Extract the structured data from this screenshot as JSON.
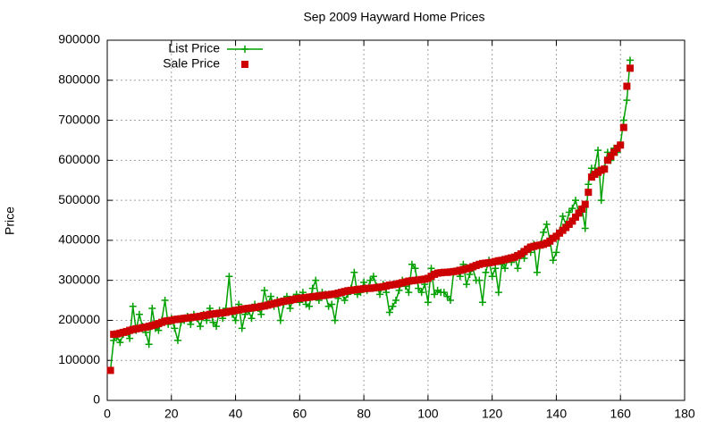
{
  "chart_data": {
    "type": "linespoints",
    "title": "Sep 2009 Hayward Home Prices",
    "y_label": "Price",
    "x": [
      1,
      2,
      3,
      4,
      5,
      6,
      7,
      8,
      9,
      10,
      11,
      12,
      13,
      14,
      15,
      16,
      17,
      18,
      19,
      20,
      21,
      22,
      23,
      24,
      25,
      26,
      27,
      28,
      29,
      30,
      31,
      32,
      33,
      34,
      35,
      36,
      37,
      38,
      39,
      40,
      41,
      42,
      43,
      44,
      45,
      46,
      47,
      48,
      49,
      50,
      51,
      52,
      53,
      54,
      55,
      56,
      57,
      58,
      59,
      60,
      61,
      62,
      63,
      64,
      65,
      66,
      67,
      68,
      69,
      70,
      71,
      72,
      73,
      74,
      75,
      76,
      77,
      78,
      79,
      80,
      81,
      82,
      83,
      84,
      85,
      86,
      87,
      88,
      89,
      90,
      91,
      92,
      93,
      94,
      95,
      96,
      97,
      98,
      99,
      100,
      101,
      102,
      103,
      104,
      105,
      106,
      107,
      108,
      109,
      110,
      111,
      112,
      113,
      114,
      115,
      116,
      117,
      118,
      119,
      120,
      121,
      122,
      123,
      124,
      125,
      126,
      127,
      128,
      129,
      130,
      131,
      132,
      133,
      134,
      135,
      136,
      137,
      138,
      139,
      140,
      141,
      142,
      143,
      144,
      145,
      146,
      147,
      148,
      149,
      150,
      151,
      152,
      153,
      154,
      155,
      156,
      157,
      158,
      159,
      160,
      161,
      162,
      163
    ],
    "series": [
      {
        "name": "List Price",
        "color": "#00a000",
        "style": "linespoints",
        "values": [
          75000,
          150000,
          160000,
          145000,
          165000,
          170000,
          155000,
          235000,
          175000,
          215000,
          185000,
          170000,
          140000,
          230000,
          180000,
          175000,
          200000,
          250000,
          190000,
          205000,
          180000,
          150000,
          195000,
          200000,
          210000,
          190000,
          215000,
          205000,
          185000,
          215000,
          200000,
          230000,
          195000,
          185000,
          225000,
          205000,
          230000,
          310000,
          215000,
          200000,
          240000,
          180000,
          215000,
          225000,
          205000,
          240000,
          230000,
          215000,
          275000,
          240000,
          260000,
          235000,
          250000,
          200000,
          240000,
          260000,
          230000,
          255000,
          265000,
          245000,
          270000,
          240000,
          235000,
          280000,
          300000,
          250000,
          270000,
          265000,
          235000,
          240000,
          200000,
          255000,
          270000,
          250000,
          265000,
          280000,
          320000,
          265000,
          270000,
          295000,
          275000,
          300000,
          310000,
          285000,
          265000,
          290000,
          270000,
          220000,
          235000,
          250000,
          275000,
          300000,
          285000,
          270000,
          340000,
          330000,
          280000,
          270000,
          290000,
          245000,
          330000,
          265000,
          275000,
          270000,
          270000,
          260000,
          250000,
          320000,
          325000,
          310000,
          340000,
          290000,
          315000,
          330000,
          300000,
          300000,
          245000,
          320000,
          350000,
          310000,
          330000,
          270000,
          340000,
          330000,
          355000,
          345000,
          360000,
          330000,
          370000,
          355000,
          380000,
          370000,
          390000,
          320000,
          390000,
          420000,
          440000,
          400000,
          350000,
          370000,
          420000,
          460000,
          440000,
          470000,
          480000,
          500000,
          470000,
          480000,
          430000,
          540000,
          580000,
          580000,
          625000,
          500000,
          580000,
          620000,
          600000,
          630000,
          620000,
          640000,
          700000,
          750000,
          850000
        ]
      },
      {
        "name": "Sale Price",
        "color": "#cc0000",
        "style": "points",
        "values": [
          75000,
          165000,
          166000,
          168000,
          170000,
          172000,
          175000,
          177000,
          179000,
          180000,
          182000,
          183000,
          185000,
          187000,
          189000,
          192000,
          195000,
          198000,
          199000,
          200000,
          202000,
          203000,
          204000,
          205000,
          206000,
          207000,
          208000,
          209000,
          210000,
          212000,
          213000,
          215000,
          216000,
          217000,
          218000,
          219000,
          220000,
          222000,
          223000,
          225000,
          226000,
          228000,
          229000,
          230000,
          231000,
          232000,
          233000,
          235000,
          236000,
          238000,
          240000,
          242000,
          244000,
          246000,
          248000,
          249000,
          250000,
          252000,
          254000,
          255000,
          256000,
          257000,
          258000,
          259000,
          260000,
          261000,
          262000,
          263000,
          264000,
          265000,
          266000,
          268000,
          270000,
          272000,
          274000,
          275000,
          276000,
          277000,
          278000,
          279000,
          280000,
          280000,
          281000,
          282000,
          283000,
          284000,
          286000,
          288000,
          289000,
          290000,
          292000,
          294000,
          296000,
          298000,
          299000,
          300000,
          301000,
          302000,
          303000,
          305000,
          310000,
          315000,
          318000,
          319000,
          320000,
          320000,
          321000,
          322000,
          323000,
          325000,
          327000,
          329000,
          331000,
          334000,
          337000,
          340000,
          342000,
          343000,
          344000,
          345000,
          347000,
          349000,
          350000,
          352000,
          354000,
          356000,
          358000,
          362000,
          366000,
          372000,
          378000,
          383000,
          385000,
          387000,
          388000,
          390000,
          393000,
          398000,
          405000,
          410000,
          418000,
          425000,
          432000,
          440000,
          448000,
          458000,
          468000,
          478000,
          490000,
          520000,
          558000,
          565000,
          570000,
          575000,
          578000,
          600000,
          610000,
          620000,
          630000,
          638000,
          682000,
          785000,
          830000
        ]
      }
    ],
    "xlim": [
      0,
      180
    ],
    "xticks": [
      0,
      20,
      40,
      60,
      80,
      100,
      120,
      140,
      160,
      180
    ],
    "ylim": [
      0,
      900000
    ],
    "yticks": [
      0,
      100000,
      200000,
      300000,
      400000,
      500000,
      600000,
      700000,
      800000,
      900000
    ],
    "grid": true,
    "legend": "top-left"
  }
}
